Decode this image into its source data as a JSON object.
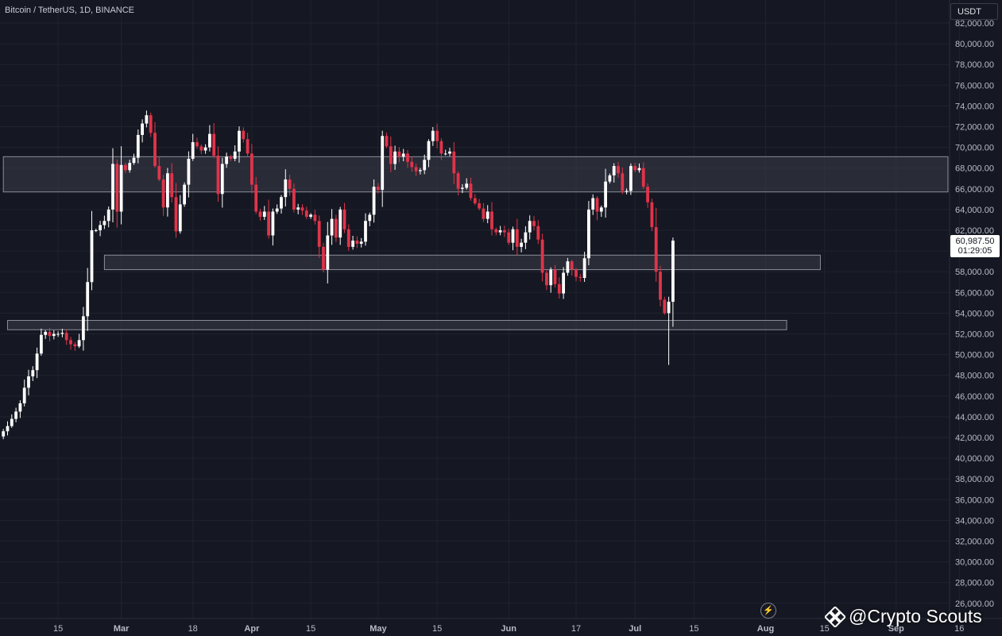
{
  "header": {
    "title": "Bitcoin / TetherUS, 1D, BINANCE",
    "currency": "USDT"
  },
  "price_tag": {
    "price": "60,987.50",
    "countdown": "01:29:05"
  },
  "watermark": "@Crypto Scouts",
  "colors": {
    "background": "#151822",
    "up_candle": "#ffffff",
    "down_candle": "#e0344a",
    "zone_fill": "#3a3d48",
    "zone_border": "#8a8e98",
    "grid": "#1f2330"
  },
  "chart_data": {
    "type": "candlestick",
    "title": "Bitcoin / TetherUS, 1D, BINANCE",
    "y_axis": {
      "position": "right",
      "ticks": [
        "82,000.00",
        "80,000.00",
        "78,000.00",
        "76,000.00",
        "74,000.00",
        "72,000.00",
        "70,000.00",
        "68,000.00",
        "66,000.00",
        "64,000.00",
        "62,000.00",
        "60,000.00",
        "58,000.00",
        "56,000.00",
        "54,000.00",
        "52,000.00",
        "50,000.00",
        "48,000.00",
        "46,000.00",
        "44,000.00",
        "42,000.00",
        "40,000.00",
        "38,000.00",
        "36,000.00",
        "34,000.00",
        "32,000.00",
        "30,000.00",
        "28,000.00",
        "26,000.00"
      ],
      "range": [
        25000,
        82500
      ]
    },
    "x_axis": {
      "start_date": "2024-02-02",
      "ticks": [
        {
          "date": "2024-02-15",
          "label": "15"
        },
        {
          "date": "2024-03-01",
          "label": "Mar"
        },
        {
          "date": "2024-03-18",
          "label": "18"
        },
        {
          "date": "2024-04-01",
          "label": "Apr"
        },
        {
          "date": "2024-04-15",
          "label": "15"
        },
        {
          "date": "2024-05-01",
          "label": "May"
        },
        {
          "date": "2024-05-15",
          "label": "15"
        },
        {
          "date": "2024-06-01",
          "label": "Jun"
        },
        {
          "date": "2024-06-17",
          "label": "17"
        },
        {
          "date": "2024-07-01",
          "label": "Jul"
        },
        {
          "date": "2024-07-15",
          "label": "15"
        },
        {
          "date": "2024-08-01",
          "label": "Aug"
        },
        {
          "date": "2024-08-15",
          "label": "15"
        },
        {
          "date": "2024-09-01",
          "label": "Sep"
        },
        {
          "date": "2024-09-16",
          "label": "16"
        }
      ]
    },
    "zones": [
      {
        "name": "resistance-zone",
        "start": "2024-02-02",
        "end": "2024-09-30",
        "low": 65700,
        "high": 69100
      },
      {
        "name": "mid-support-zone",
        "start": "2024-02-26",
        "end": "2024-08-14",
        "low": 58200,
        "high": 59600
      },
      {
        "name": "lower-support-zone",
        "start": "2024-02-03",
        "end": "2024-08-06",
        "low": 52400,
        "high": 53300
      }
    ],
    "closes": [
      42600,
      43100,
      43800,
      44500,
      45300,
      46800,
      47900,
      48500,
      50100,
      51900,
      52200,
      51800,
      52000,
      52000,
      52100,
      51400,
      51000,
      50800,
      51400,
      53700,
      57000,
      62000,
      62000,
      62500,
      62900,
      64000,
      68400,
      63800,
      68300,
      67800,
      68500,
      69000,
      71200,
      72300,
      73100,
      71400,
      68200,
      66900,
      64200,
      67500,
      65200,
      61900,
      64500,
      66400,
      68900,
      70500,
      70100,
      69700,
      70000,
      71300,
      69200,
      65500,
      68400,
      69100,
      68900,
      69600,
      71600,
      70800,
      69400,
      66400,
      63800,
      63300,
      63800,
      61500,
      63800,
      64100,
      65200,
      66900,
      66000,
      64000,
      64200,
      63900,
      63300,
      63500,
      62900,
      60400,
      58200,
      61500,
      63100,
      61300,
      64000,
      62100,
      60400,
      61000,
      60700,
      60900,
      62900,
      63500,
      66200,
      65900,
      71100,
      70100,
      68400,
      69600,
      69100,
      69400,
      68600,
      68100,
      67700,
      67800,
      68800,
      70600,
      71600,
      70600,
      69400,
      69400,
      69600,
      67500,
      66000,
      66100,
      66500,
      65100,
      64600,
      64100,
      63100,
      63800,
      62100,
      61800,
      62000,
      61800,
      60800,
      62100,
      60400,
      60800,
      61800,
      62900,
      62400,
      61100,
      57900,
      56700,
      58200,
      56800,
      55900,
      57900,
      59000,
      58200,
      57500,
      57400,
      59300,
      64000,
      65100,
      63800,
      64200,
      66700,
      67300,
      68200,
      67500,
      65800,
      65800,
      68200,
      67800,
      68000,
      66200,
      64700,
      62300,
      58000,
      55300,
      54000,
      55100,
      61000
    ]
  }
}
